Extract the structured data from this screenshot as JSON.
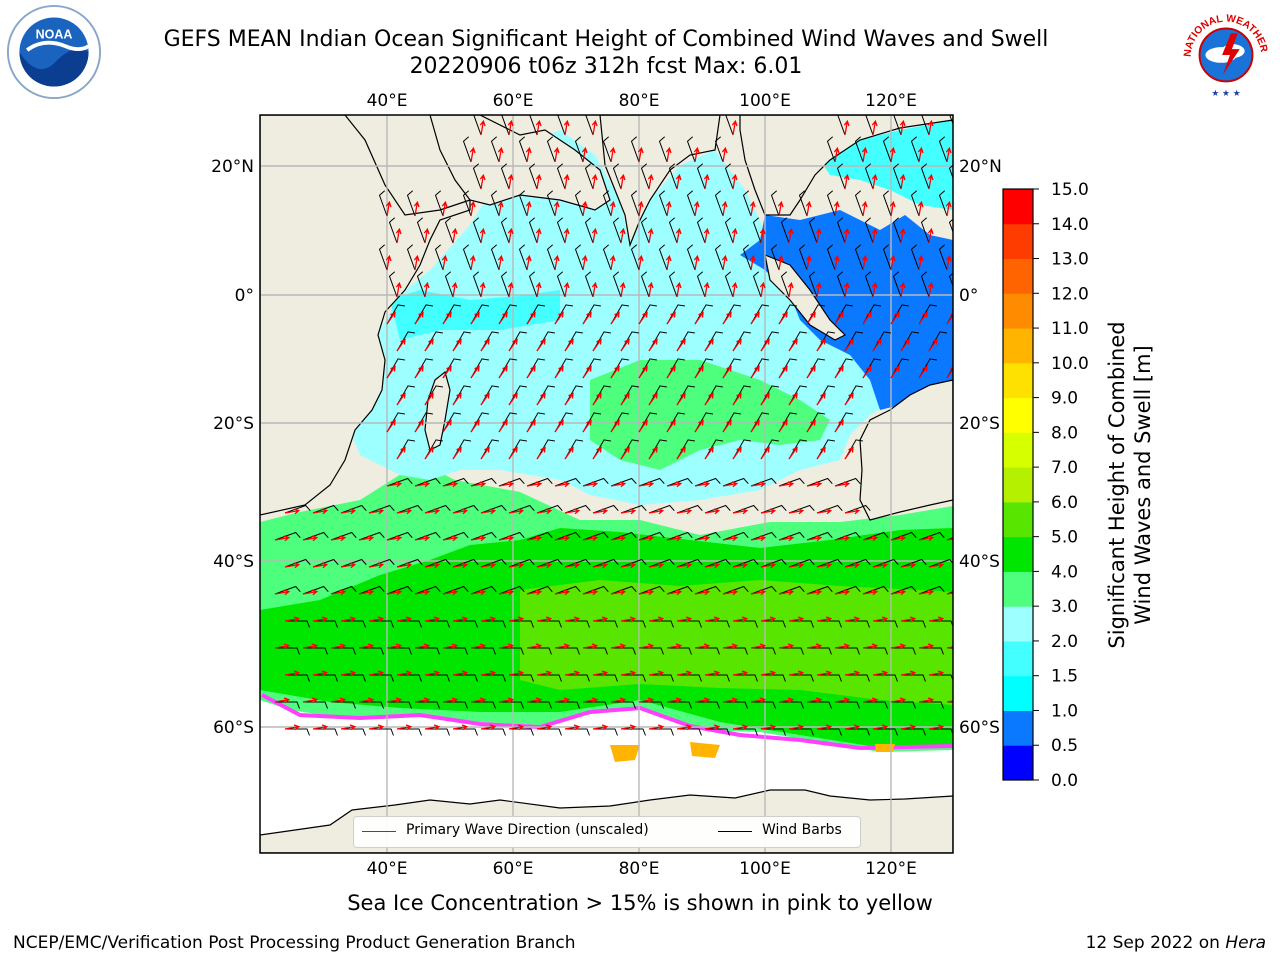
{
  "header": {
    "title_line1": "GEFS MEAN Indian Ocean Significant Height of Combined Wind Waves and Swell",
    "title_line2": "20220906 t06z 312h fcst   Max: 6.01"
  },
  "logos": {
    "left": "noaa-logo",
    "left_text": "NOAA",
    "right": "nws-logo",
    "right_text": "NATIONAL WEATHER SERVICE"
  },
  "map": {
    "type": "map",
    "lon_range": [
      20,
      130
    ],
    "lat_range": [
      -84,
      28
    ],
    "lon_ticks": [
      "40°E",
      "60°E",
      "80°E",
      "100°E",
      "120°E"
    ],
    "lat_ticks": [
      "20°N",
      "0°",
      "20°S",
      "40°S",
      "60°S"
    ],
    "grid": true,
    "land_color": "#efede0",
    "ice_color": "#ffffff"
  },
  "chart_data": {
    "type": "heatmap",
    "variable": "Significant Height of Combined Wind Waves and Swell [m]",
    "max_value": 6.01,
    "levels": [
      0.0,
      0.5,
      1.0,
      1.5,
      2.0,
      3.0,
      4.0,
      5.0,
      6.0,
      7.0,
      8.0,
      9.0,
      10.0,
      11.0,
      12.0,
      13.0,
      14.0,
      15.0
    ],
    "colors": [
      "#0000ff",
      "#0a78ff",
      "#00ffff",
      "#44ffff",
      "#9dffff",
      "#4dff7d",
      "#00e600",
      "#58e600",
      "#b4f000",
      "#d6ff00",
      "#ffff00",
      "#ffe100",
      "#ffb400",
      "#ff8c00",
      "#ff6400",
      "#ff3c00",
      "#ff0000"
    ],
    "colorbar_label_line1": "Significant Height of Combined",
    "colorbar_label_line2": "Wind Waves and Swell [m]",
    "colorbar_ticks": [
      "0.0",
      "0.5",
      "1.0",
      "1.5",
      "2.0",
      "3.0",
      "4.0",
      "5.0",
      "6.0",
      "7.0",
      "8.0",
      "9.0",
      "10.0",
      "11.0",
      "12.0",
      "13.0",
      "14.0",
      "15.0"
    ]
  },
  "legend": {
    "items": [
      {
        "label": "Primary Wave Direction (unscaled)",
        "color": "#ff0000"
      },
      {
        "label": "Wind Barbs",
        "color": "#000000"
      }
    ]
  },
  "footer": {
    "note": "Sea Ice Concentration > 15% is shown in pink to yellow",
    "credit_left": "NCEP/EMC/Verification Post Processing Product Generation Branch",
    "credit_date": "12 Sep 2022 on ",
    "credit_host": "Hera"
  }
}
